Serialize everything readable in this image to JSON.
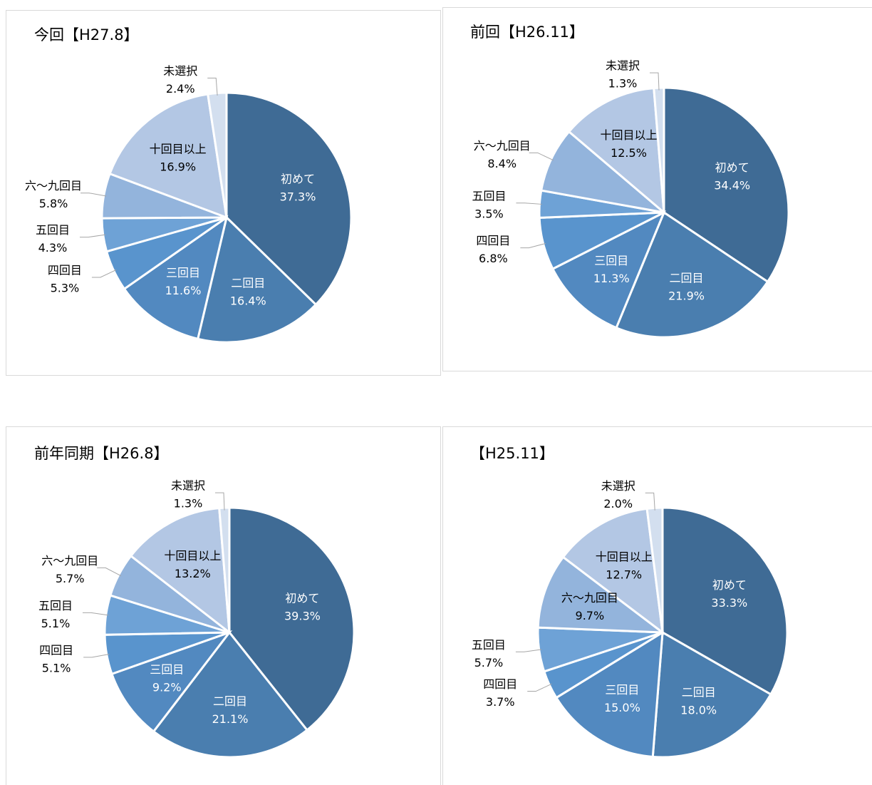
{
  "chart_data": [
    {
      "type": "pie",
      "title": "今回【H27.8】",
      "categories": [
        "初めて",
        "二回目",
        "三回目",
        "四回目",
        "五回目",
        "六～九回目",
        "十回目以上",
        "未選択"
      ],
      "values": [
        37.3,
        16.4,
        11.6,
        5.3,
        4.3,
        5.8,
        16.9,
        2.4
      ],
      "value_labels": [
        "37.3%",
        "16.4%",
        "11.6%",
        "5.3%",
        "4.3%",
        "5.8%",
        "16.9%",
        "2.4%"
      ],
      "colors": [
        "#3f6b95",
        "#4a7eaf",
        "#5289c0",
        "#5994cd",
        "#6ea2d6",
        "#93b4dc",
        "#b3c7e4",
        "#d3dfef"
      ]
    },
    {
      "type": "pie",
      "title": "前回【H26.11】",
      "categories": [
        "初めて",
        "二回目",
        "三回目",
        "四回目",
        "五回目",
        "六～九回目",
        "十回目以上",
        "未選択"
      ],
      "values": [
        34.4,
        21.9,
        11.3,
        6.8,
        3.5,
        8.4,
        12.5,
        1.3
      ],
      "value_labels": [
        "34.4%",
        "21.9%",
        "11.3%",
        "6.8%",
        "3.5%",
        "8.4%",
        "12.5%",
        "1.3%"
      ],
      "colors": [
        "#3f6b95",
        "#4a7eaf",
        "#5289c0",
        "#5994cd",
        "#6ea2d6",
        "#93b4dc",
        "#b3c7e4",
        "#d3dfef"
      ]
    },
    {
      "type": "pie",
      "title": "前年同期【H26.8】",
      "categories": [
        "初めて",
        "二回目",
        "三回目",
        "四回目",
        "五回目",
        "六～九回目",
        "十回目以上",
        "未選択"
      ],
      "values": [
        39.3,
        21.1,
        9.2,
        5.1,
        5.1,
        5.7,
        13.2,
        1.3
      ],
      "value_labels": [
        "39.3%",
        "21.1%",
        "9.2%",
        "5.1%",
        "5.1%",
        "5.7%",
        "13.2%",
        "1.3%"
      ],
      "colors": [
        "#3f6b95",
        "#4a7eaf",
        "#5289c0",
        "#5994cd",
        "#6ea2d6",
        "#93b4dc",
        "#b3c7e4",
        "#d3dfef"
      ]
    },
    {
      "type": "pie",
      "title": "【H25.11】",
      "categories": [
        "初めて",
        "二回目",
        "三回目",
        "四回目",
        "五回目",
        "六～九回目",
        "十回目以上",
        "未選択"
      ],
      "values": [
        33.3,
        18.0,
        15.0,
        3.7,
        5.7,
        9.7,
        12.7,
        2.0
      ],
      "value_labels": [
        "33.3%",
        "18.0%",
        "15.0%",
        "3.7%",
        "5.7%",
        "9.7%",
        "12.7%",
        "2.0%"
      ],
      "colors": [
        "#3f6b95",
        "#4a7eaf",
        "#5289c0",
        "#5994cd",
        "#6ea2d6",
        "#93b4dc",
        "#b3c7e4",
        "#d3dfef"
      ]
    }
  ]
}
